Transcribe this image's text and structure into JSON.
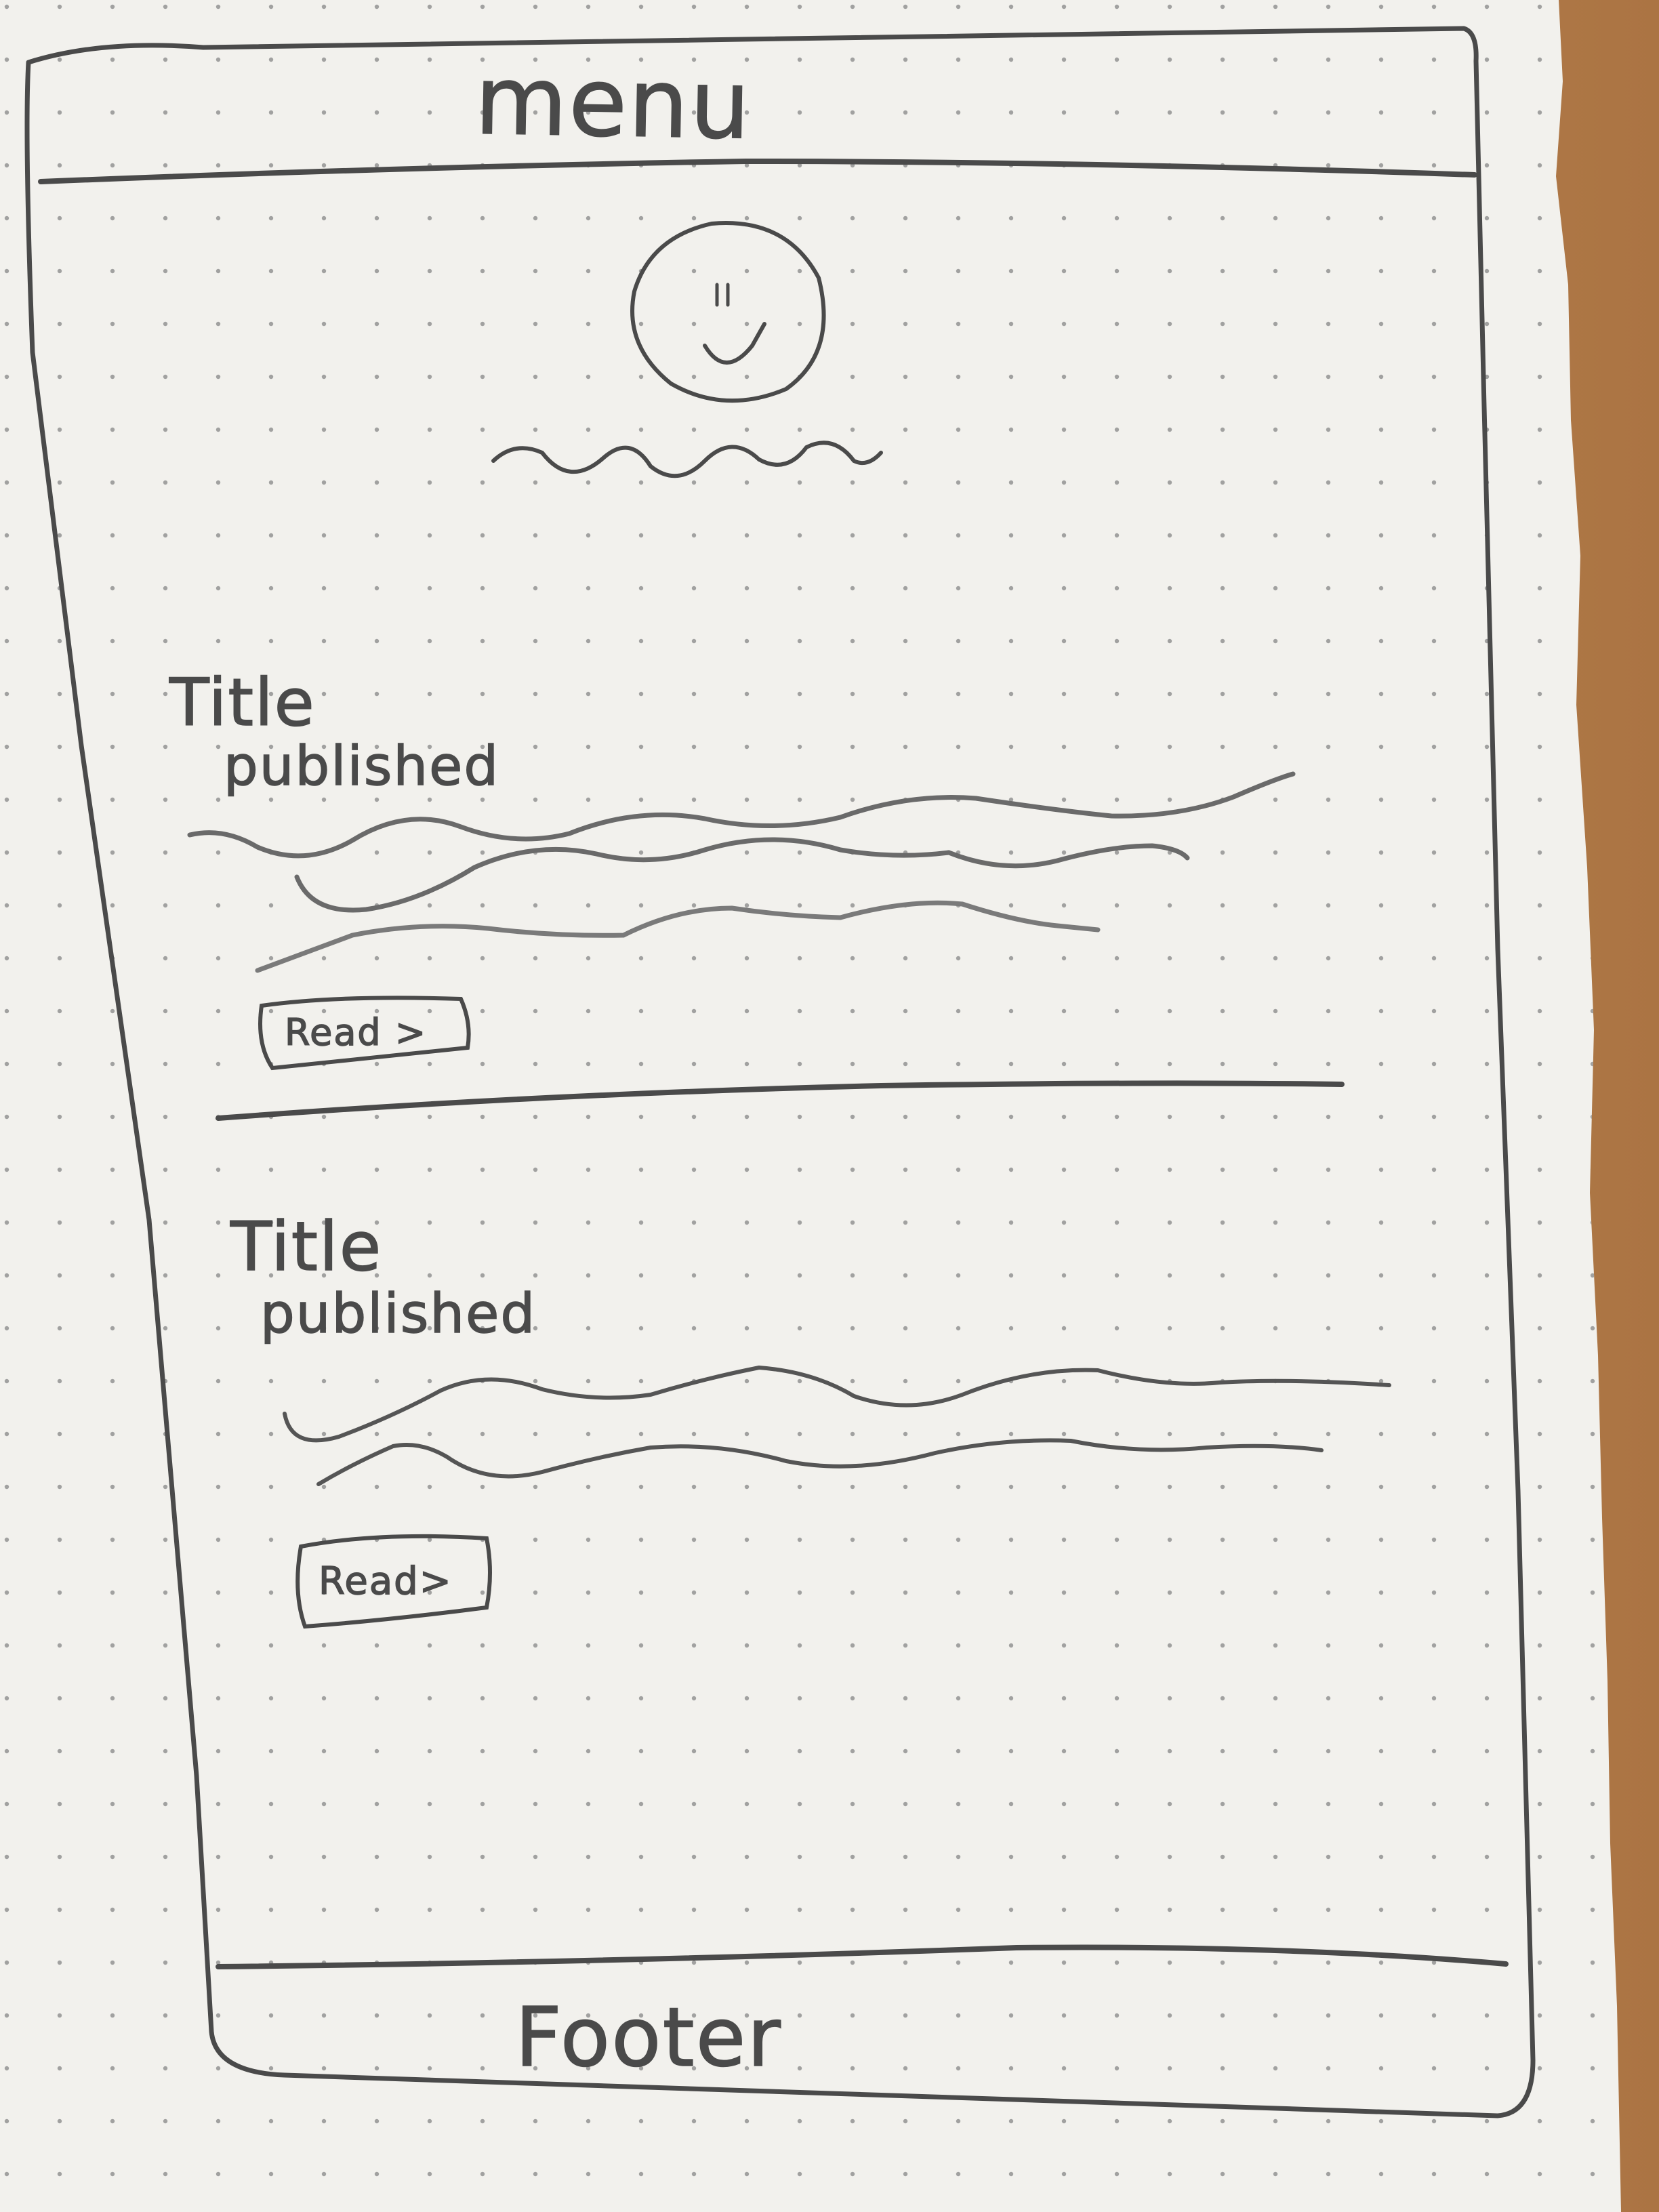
{
  "header": {
    "label": "menu"
  },
  "hero": {
    "avatar_caption": ""
  },
  "articles": [
    {
      "title": "Title",
      "meta": "published",
      "button": "Read >"
    },
    {
      "title": "Title",
      "meta": "published",
      "button": "Read>"
    }
  ],
  "footer": {
    "label": "Footer"
  },
  "colors": {
    "pencil": "#4a4a4a",
    "paper": "#f2f1ed",
    "desk": "#b07a48",
    "grid_dot": "#9a9a9a"
  }
}
